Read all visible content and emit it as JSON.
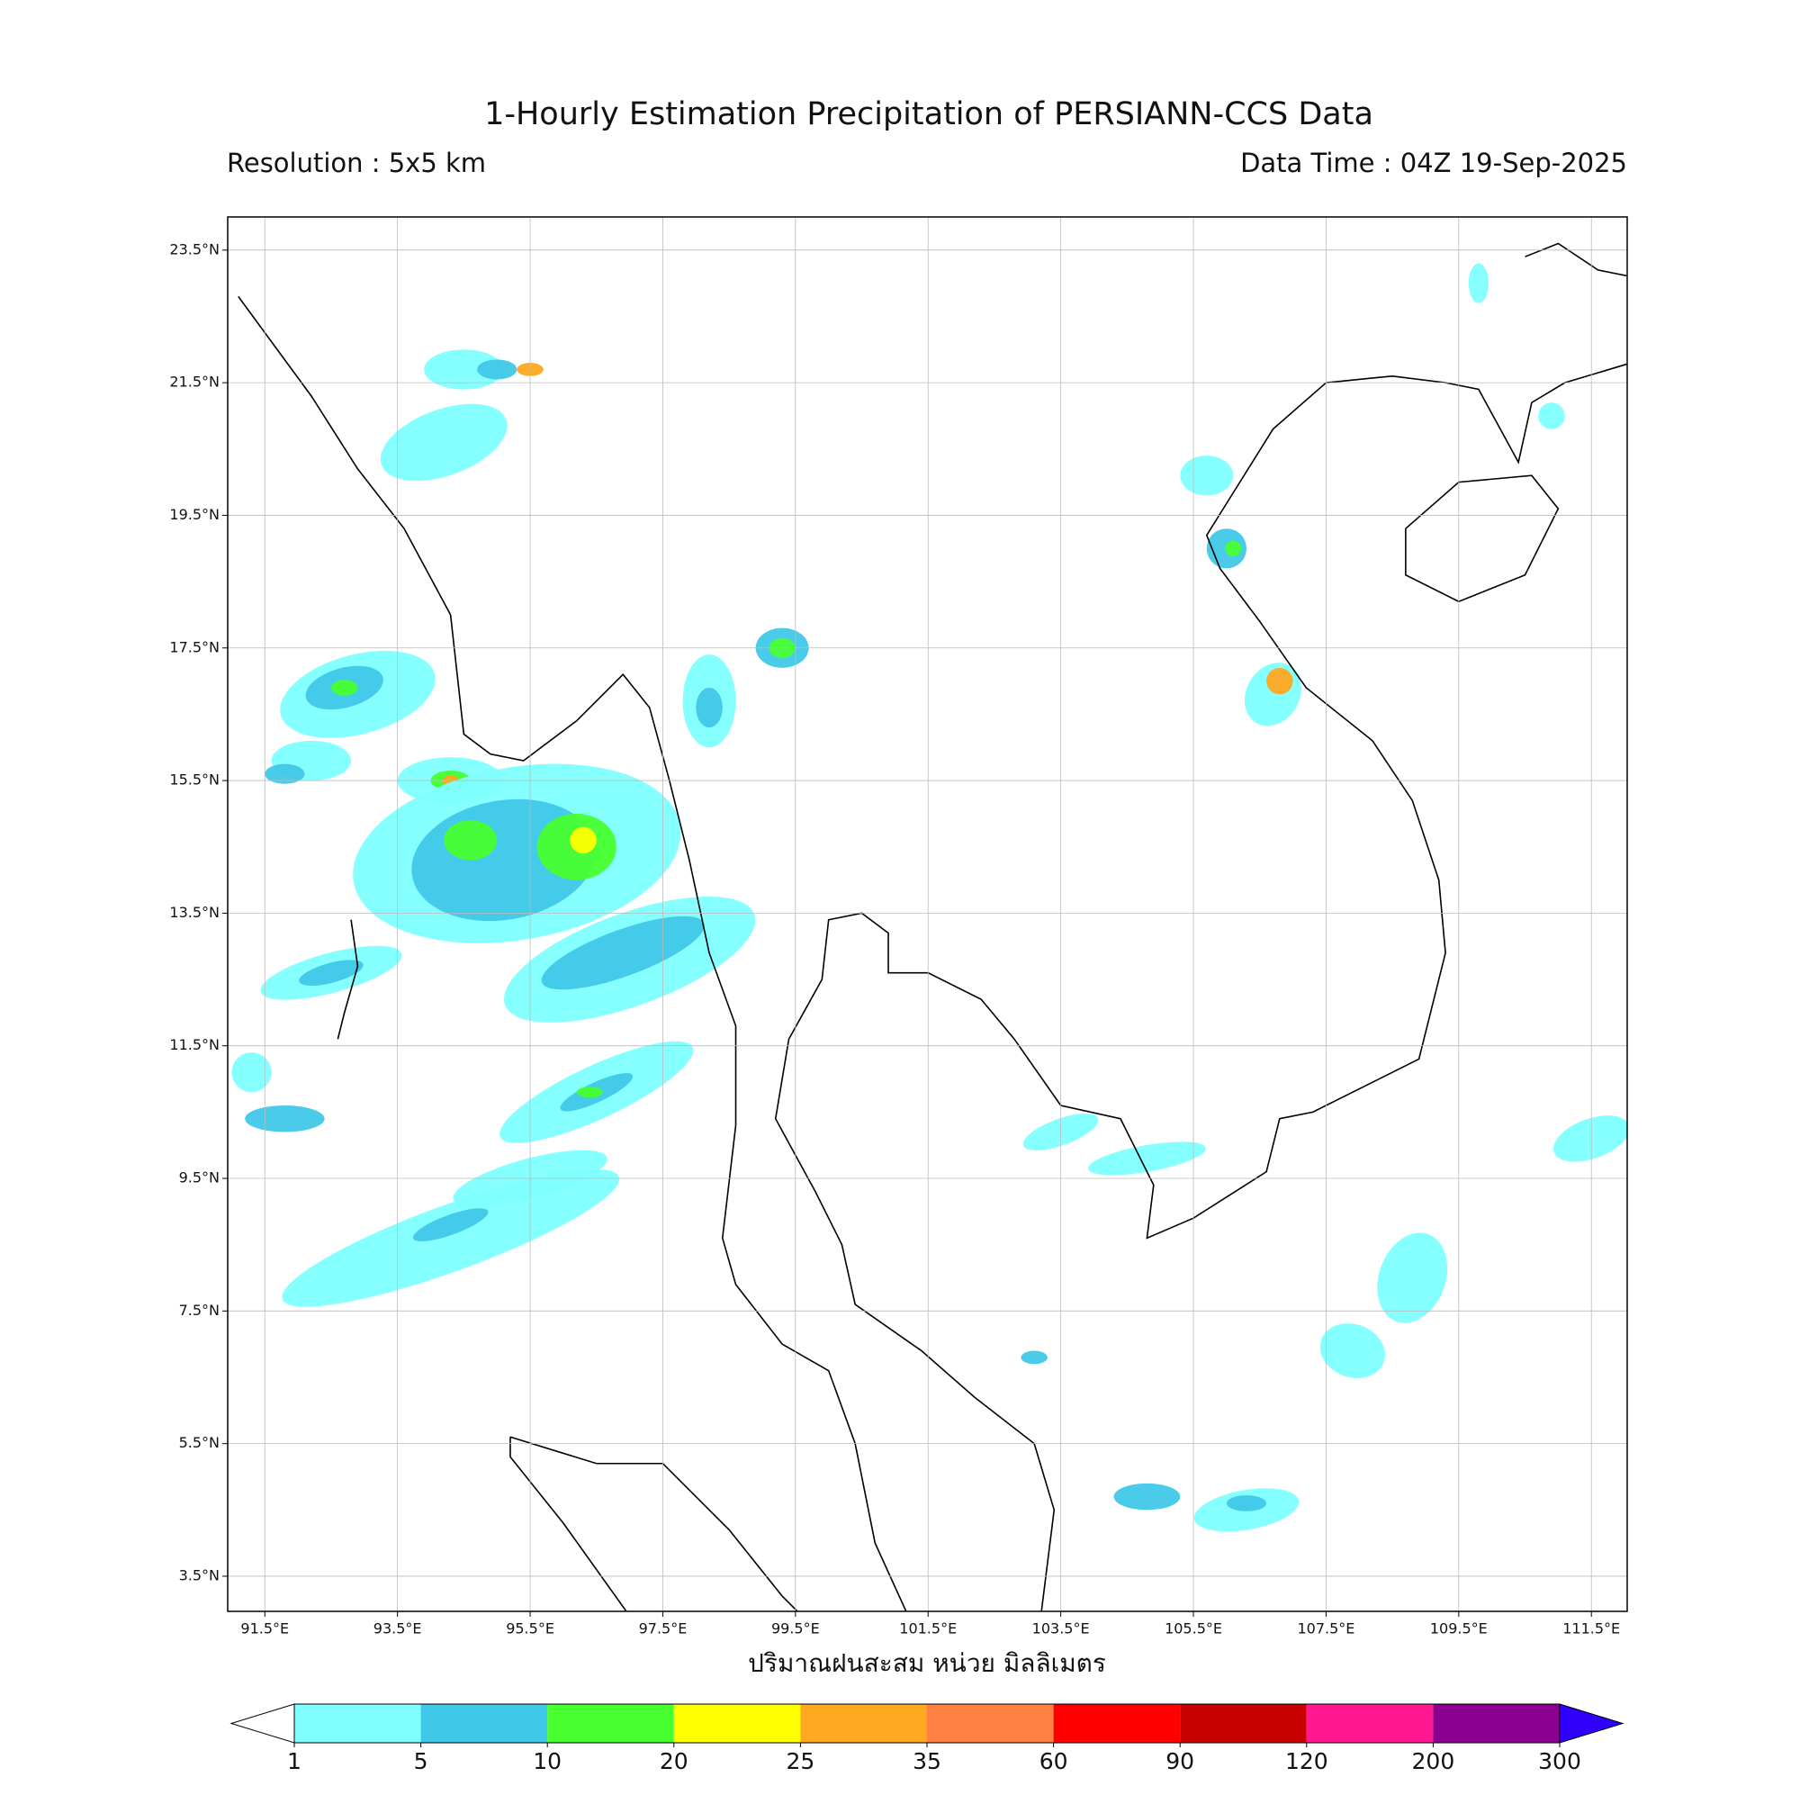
{
  "map": {
    "title": "1-Hourly Estimation Precipitation of PERSIANN-CCS Data",
    "resolution": "Resolution : 5x5 km",
    "data_time": "Data Time : 04Z 19-Sep-2025",
    "xlabel": "ปริมาณฝนสะสม หน่วย มิลลิเมตร",
    "lonlim": [
      90.94,
      112.04
    ],
    "latlim": [
      2.97,
      24.0
    ],
    "lon_ticks": [
      {
        "value": 91.5,
        "label": "91.5°E"
      },
      {
        "value": 93.5,
        "label": "93.5°E"
      },
      {
        "value": 95.5,
        "label": "95.5°E"
      },
      {
        "value": 97.5,
        "label": "97.5°E"
      },
      {
        "value": 99.5,
        "label": "99.5°E"
      },
      {
        "value": 101.5,
        "label": "101.5°E"
      },
      {
        "value": 103.5,
        "label": "103.5°E"
      },
      {
        "value": 105.5,
        "label": "105.5°E"
      },
      {
        "value": 107.5,
        "label": "107.5°E"
      },
      {
        "value": 109.5,
        "label": "109.5°E"
      },
      {
        "value": 111.5,
        "label": "111.5°E"
      }
    ],
    "lat_ticks": [
      {
        "value": 23.5,
        "label": "23.5°N"
      },
      {
        "value": 21.5,
        "label": "21.5°N"
      },
      {
        "value": 19.5,
        "label": "19.5°N"
      },
      {
        "value": 17.5,
        "label": "17.5°N"
      },
      {
        "value": 15.5,
        "label": "15.5°N"
      },
      {
        "value": 13.5,
        "label": "13.5°N"
      },
      {
        "value": 11.5,
        "label": "11.5°N"
      },
      {
        "value": 9.5,
        "label": "9.5°N"
      },
      {
        "value": 7.5,
        "label": "7.5°N"
      },
      {
        "value": 5.5,
        "label": "5.5°N"
      },
      {
        "value": 3.5,
        "label": "3.5°N"
      }
    ],
    "grid": true,
    "colorbar": {
      "levels": [
        1,
        5,
        10,
        20,
        25,
        35,
        60,
        90,
        120,
        200,
        300
      ],
      "colors": [
        "#80ffff",
        "#40c8e8",
        "#48ff30",
        "#ffff00",
        "#ffa820",
        "#ff8040",
        "#ff0000",
        "#c80000",
        "#ff1890",
        "#8c0090"
      ],
      "under_color": "#ffffff",
      "over_color": "#3000ff"
    }
  }
}
